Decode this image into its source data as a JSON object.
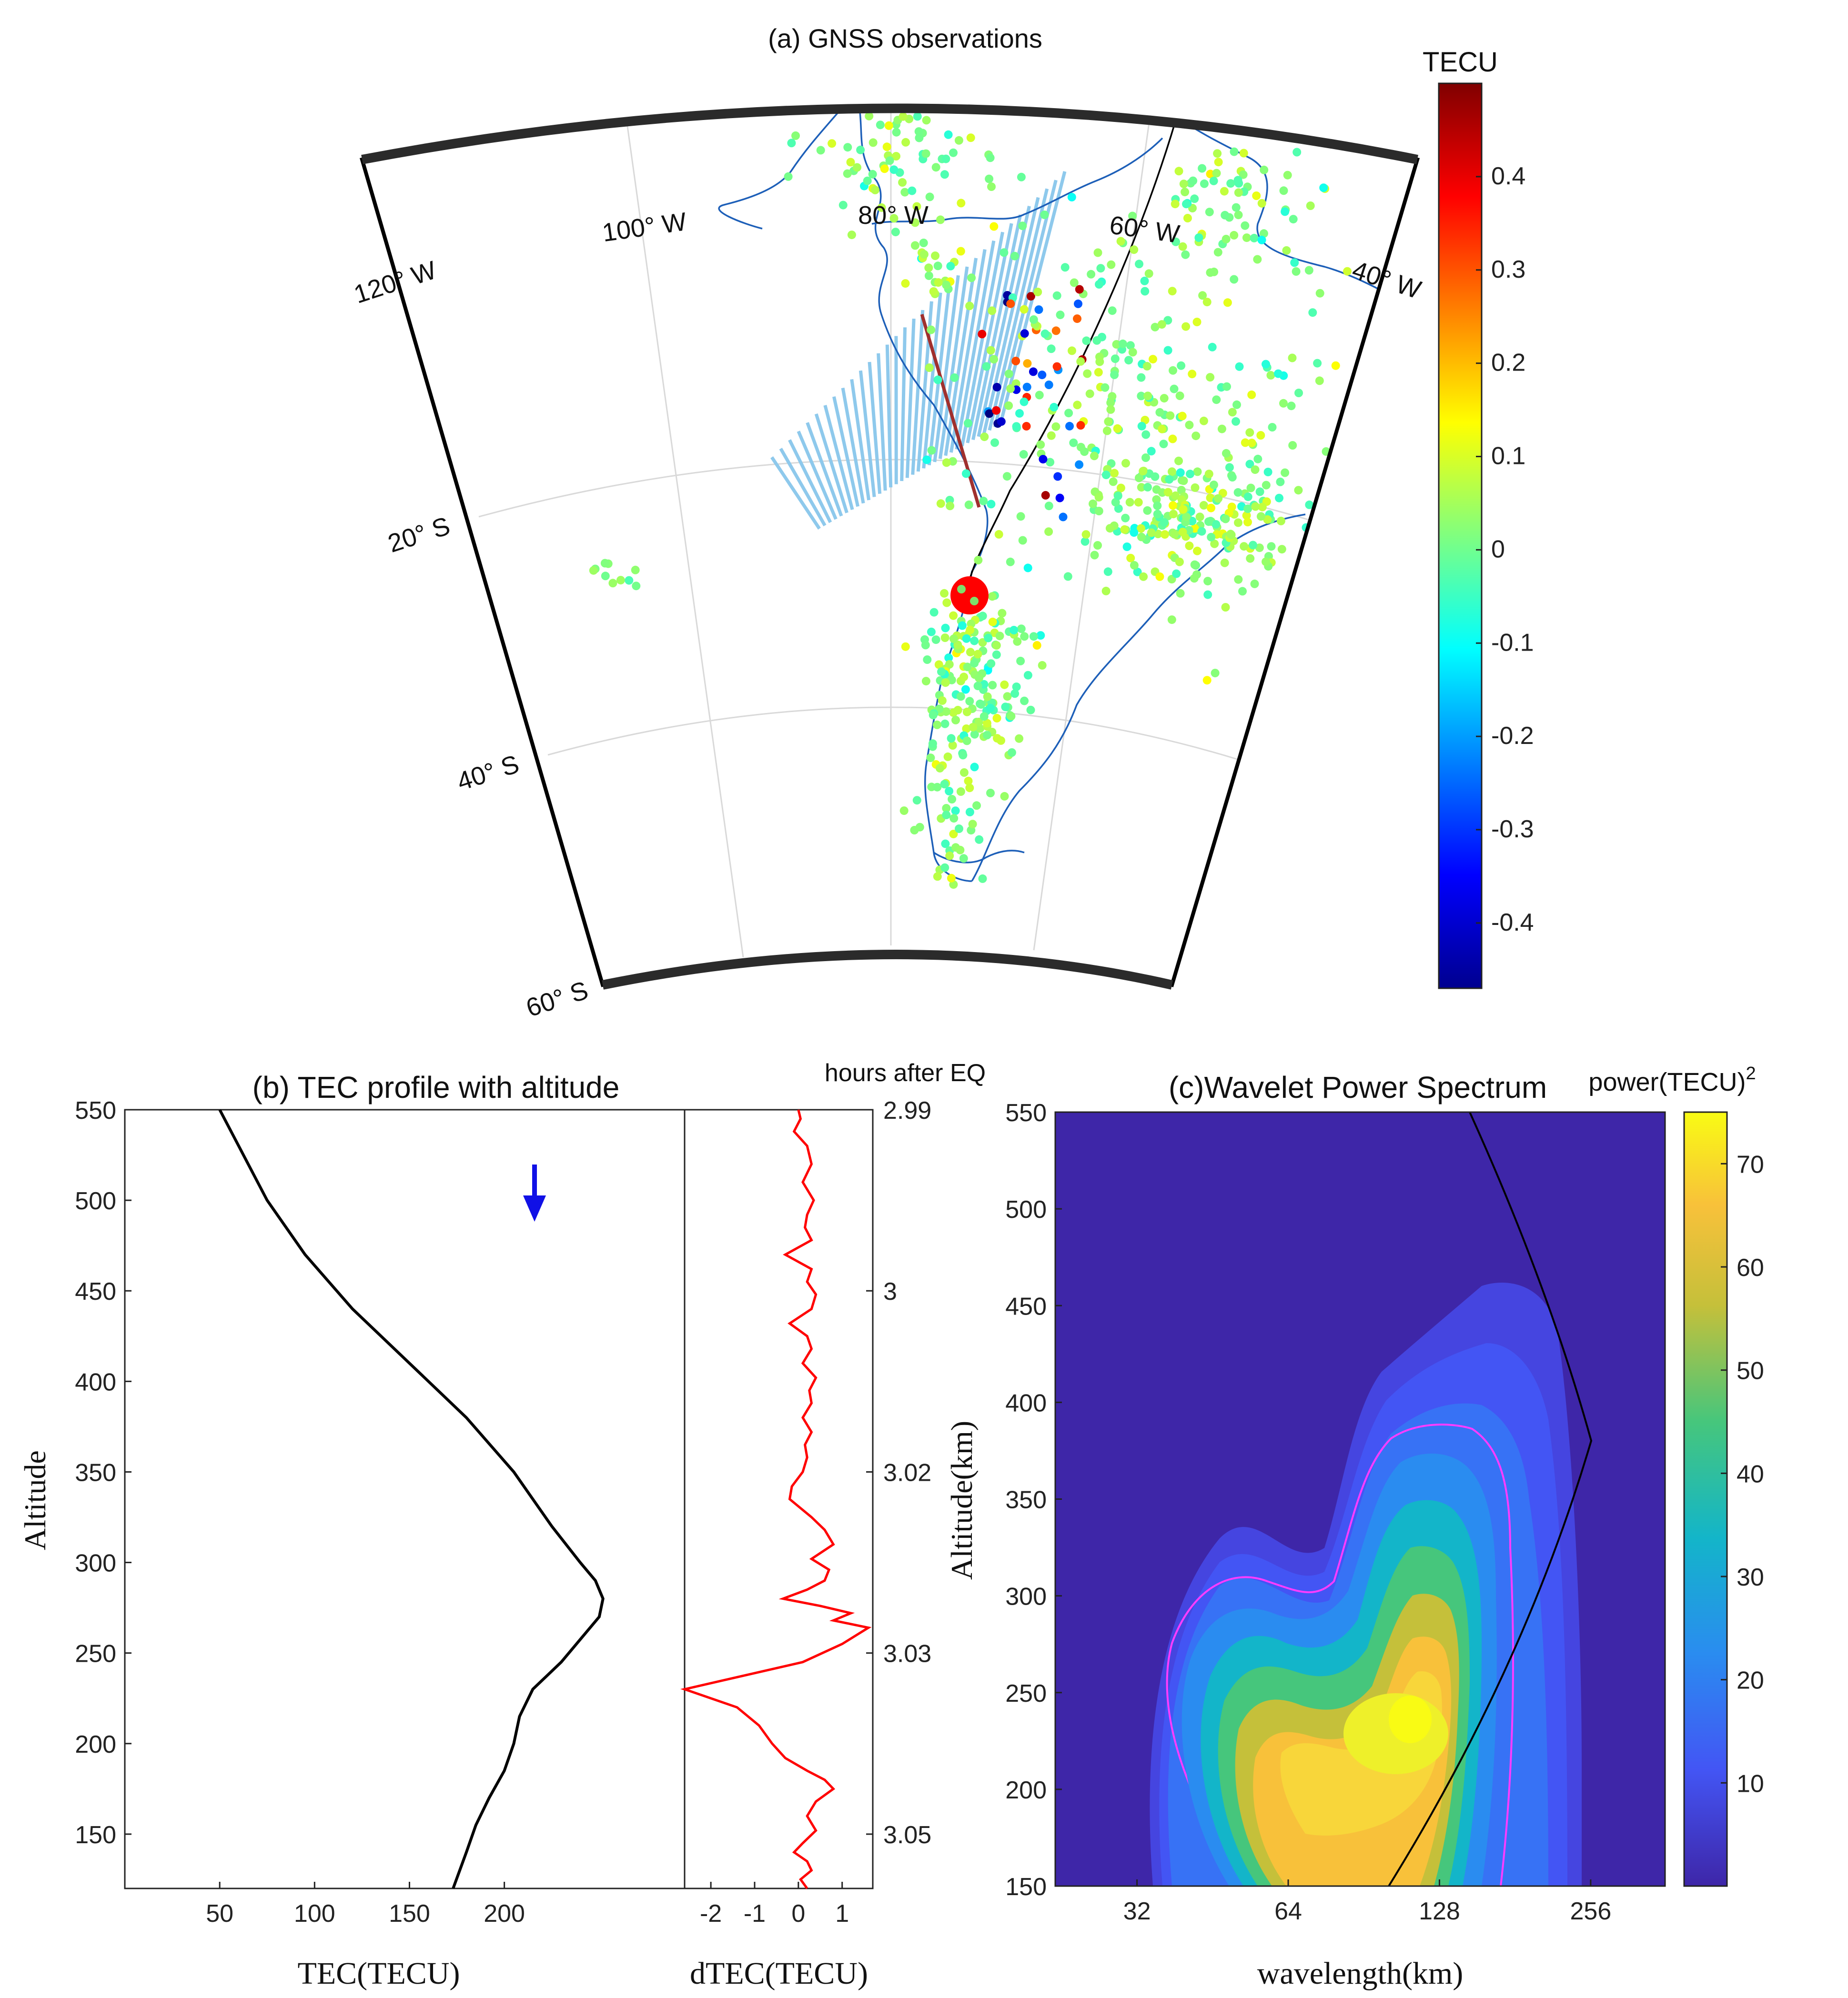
{
  "panel_a": {
    "title": "(a) GNSS observations",
    "colorbar_title": "TECU",
    "colorbar_ticks": [
      "0.4",
      "0.3",
      "0.2",
      "0.1",
      "0",
      "-0.1",
      "-0.2",
      "-0.3",
      "-0.4"
    ],
    "lon_labels": [
      "120° W",
      "100° W",
      "80° W",
      "60° W",
      "40° W"
    ],
    "lat_labels": [
      "20° S",
      "40° S",
      "60° S"
    ],
    "colormap": "jet",
    "clim": [
      -0.47,
      0.5
    ],
    "epicenter_color": "#ff0000",
    "track_color": "#8ec9ec"
  },
  "chart_data": [
    {
      "type": "line",
      "title": "(b) TEC profile with altitude",
      "xlabel": "TEC(TECU)",
      "ylabel": "Altitude",
      "xticks": [
        "50",
        "100",
        "150",
        "200"
      ],
      "yticks": [
        "550",
        "500",
        "450",
        "400",
        "350",
        "300",
        "250",
        "200",
        "150"
      ],
      "xlim": [
        0,
        295
      ],
      "ylim": [
        120,
        550
      ],
      "series": [
        {
          "color": "#000000",
          "x": [
            50,
            60,
            75,
            95,
            120,
            150,
            180,
            205,
            225,
            240,
            248,
            252,
            250,
            242,
            230,
            215,
            208,
            205,
            200,
            192,
            185,
            180,
            173
          ],
          "y": [
            550,
            530,
            500,
            470,
            440,
            410,
            380,
            350,
            320,
            300,
            290,
            280,
            270,
            260,
            245,
            230,
            215,
            200,
            185,
            170,
            155,
            140,
            120
          ]
        }
      ]
    },
    {
      "type": "line",
      "xlabel": "dTEC(TECU)",
      "right_label": "hours after EQ",
      "xticks": [
        "-2",
        "-1",
        "0",
        "1"
      ],
      "right_ticks": [
        "2.99",
        "3",
        "3.02",
        "3.03",
        "3.05"
      ],
      "xlim": [
        -2.6,
        1.7
      ],
      "ylim": [
        120,
        550
      ],
      "series": [
        {
          "color": "#ff0000",
          "x": [
            0,
            0.05,
            -0.1,
            0.2,
            0.3,
            0.1,
            0.35,
            0.2,
            0.15,
            0.3,
            -0.3,
            0.3,
            0.2,
            0.4,
            0.3,
            -0.2,
            0.2,
            0.3,
            0.1,
            0.4,
            0.25,
            0.3,
            0.1,
            0.3,
            0.15,
            0.2,
            0.1,
            -0.15,
            -0.2,
            0.3,
            0.6,
            0.8,
            0.3,
            0.7,
            0.6,
            0.2,
            -0.35,
            0.5,
            1.2,
            0.8,
            1.6,
            1.0,
            0.1,
            -2.6,
            -1.4,
            -0.9,
            -0.6,
            -0.3,
            0.2,
            0.6,
            0.8,
            0.4,
            0.2,
            0.4,
            0.1,
            -0.1,
            0.2,
            0.3,
            0.05,
            0.2
          ],
          "y": [
            550,
            545,
            538,
            530,
            520,
            510,
            500,
            492,
            485,
            478,
            470,
            462,
            455,
            448,
            440,
            432,
            425,
            418,
            410,
            402,
            395,
            388,
            380,
            372,
            365,
            358,
            350,
            342,
            335,
            325,
            318,
            310,
            302,
            296,
            290,
            285,
            280,
            276,
            272,
            268,
            264,
            255,
            245,
            230,
            220,
            210,
            200,
            192,
            185,
            180,
            175,
            168,
            160,
            152,
            145,
            140,
            135,
            130,
            125,
            120
          ]
        }
      ]
    },
    {
      "type": "heatmap",
      "title": "(c)Wavelet Power Spectrum",
      "xlabel": "wavelength(km)",
      "ylabel": "Altitude(km)",
      "xscale": "log2",
      "xticks": [
        "32",
        "64",
        "128",
        "256"
      ],
      "yticks": [
        "550",
        "500",
        "450",
        "400",
        "350",
        "300",
        "250",
        "200",
        "150"
      ],
      "xlim": [
        22,
        360
      ],
      "ylim": [
        150,
        550
      ],
      "colorbar_title": "power(TECU)",
      "colorbar_title_sup": "2",
      "colorbar_ticks": [
        "70",
        "60",
        "50",
        "40",
        "30",
        "20",
        "10"
      ],
      "clim": [
        0,
        75
      ],
      "colormap": "parula",
      "peak": {
        "wavelength": 100,
        "altitude": 235,
        "power": 72
      }
    }
  ]
}
